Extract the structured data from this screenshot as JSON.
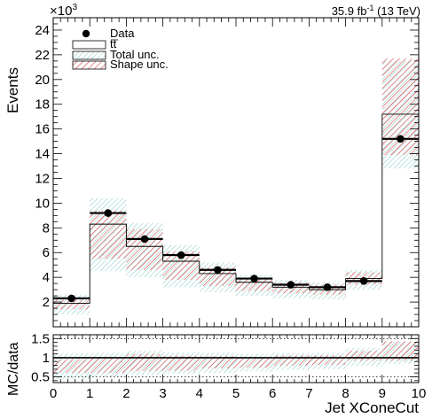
{
  "lumi_label": "35.9 fb",
  "lumi_exp": "-1",
  "lumi_tail": " (13 TeV)",
  "y_multiplier_base": "×10",
  "y_multiplier_exp": "3",
  "legend": {
    "data": "Data",
    "ttbar": "tt",
    "total_unc": "Total unc.",
    "shape_unc": "Shape unc."
  },
  "colors": {
    "total_unc": "#7fc9c3",
    "shape_unc": "#d93030"
  },
  "chart_data": [
    {
      "type": "bar",
      "panel": "main",
      "ylabel": "Events",
      "xlabel": "",
      "xlim": [
        0,
        10
      ],
      "ylim": [
        0,
        25
      ],
      "y_unit_multiplier": 1000,
      "y_ticks": [
        "2",
        "4",
        "6",
        "8",
        "10",
        "12",
        "14",
        "16",
        "18",
        "20",
        "22",
        "24"
      ],
      "bin_edges": [
        0,
        1,
        2,
        3,
        4,
        5,
        6,
        7,
        8,
        9,
        10
      ],
      "series": [
        {
          "name": "Data",
          "kind": "points",
          "values": [
            2.3,
            9.2,
            7.1,
            5.8,
            4.6,
            3.9,
            3.4,
            3.2,
            3.7,
            15.2
          ],
          "xerr": 0.5
        },
        {
          "name": "tt",
          "kind": "histogram",
          "values": [
            1.9,
            8.3,
            6.5,
            5.3,
            4.3,
            3.6,
            3.2,
            3.0,
            3.9,
            17.2
          ]
        },
        {
          "name": "Total unc.",
          "kind": "band",
          "low": [
            1.0,
            4.5,
            4.0,
            3.2,
            2.8,
            2.5,
            2.3,
            2.2,
            3.0,
            12.8
          ],
          "high": [
            2.6,
            10.4,
            8.4,
            6.6,
            5.2,
            4.2,
            3.8,
            3.6,
            4.6,
            21.5
          ]
        },
        {
          "name": "Shape unc.",
          "kind": "band",
          "low": [
            1.4,
            5.5,
            4.6,
            3.8,
            3.3,
            2.9,
            2.7,
            2.6,
            3.4,
            13.9
          ],
          "high": [
            2.2,
            9.4,
            7.9,
            6.1,
            4.8,
            3.9,
            3.6,
            3.4,
            4.4,
            21.7
          ]
        }
      ]
    },
    {
      "type": "bar",
      "panel": "ratio",
      "ylabel": "MC/data",
      "xlabel": "Jet XConeCut",
      "xlim": [
        0,
        10
      ],
      "ylim": [
        0.35,
        1.6
      ],
      "x_ticks": [
        "0",
        "1",
        "2",
        "3",
        "4",
        "5",
        "6",
        "7",
        "8",
        "9",
        "10"
      ],
      "y_ticks": [
        "0.5",
        "1",
        "1.5"
      ],
      "reference_lines": [
        0.5,
        1.0,
        1.5
      ],
      "bin_edges": [
        0,
        1,
        2,
        3,
        4,
        5,
        6,
        7,
        8,
        9,
        10
      ],
      "series": [
        {
          "name": "Total unc.",
          "kind": "band",
          "low": [
            0.45,
            0.5,
            0.55,
            0.58,
            0.6,
            0.64,
            0.68,
            0.7,
            0.78,
            0.84
          ],
          "high": [
            1.12,
            1.13,
            1.18,
            1.14,
            1.13,
            1.1,
            1.12,
            1.12,
            1.25,
            1.42
          ]
        },
        {
          "name": "Shape unc.",
          "kind": "band",
          "low": [
            0.6,
            0.6,
            0.65,
            0.66,
            0.72,
            0.74,
            0.79,
            0.81,
            0.92,
            0.92
          ],
          "high": [
            0.96,
            1.02,
            1.1,
            1.05,
            1.04,
            1.0,
            1.06,
            1.06,
            1.18,
            1.43
          ]
        },
        {
          "name": "ratio",
          "kind": "line",
          "values": [
            1.0,
            1.0,
            1.0,
            1.0,
            1.0,
            1.0,
            1.0,
            1.0,
            1.0,
            1.0
          ]
        }
      ]
    }
  ]
}
